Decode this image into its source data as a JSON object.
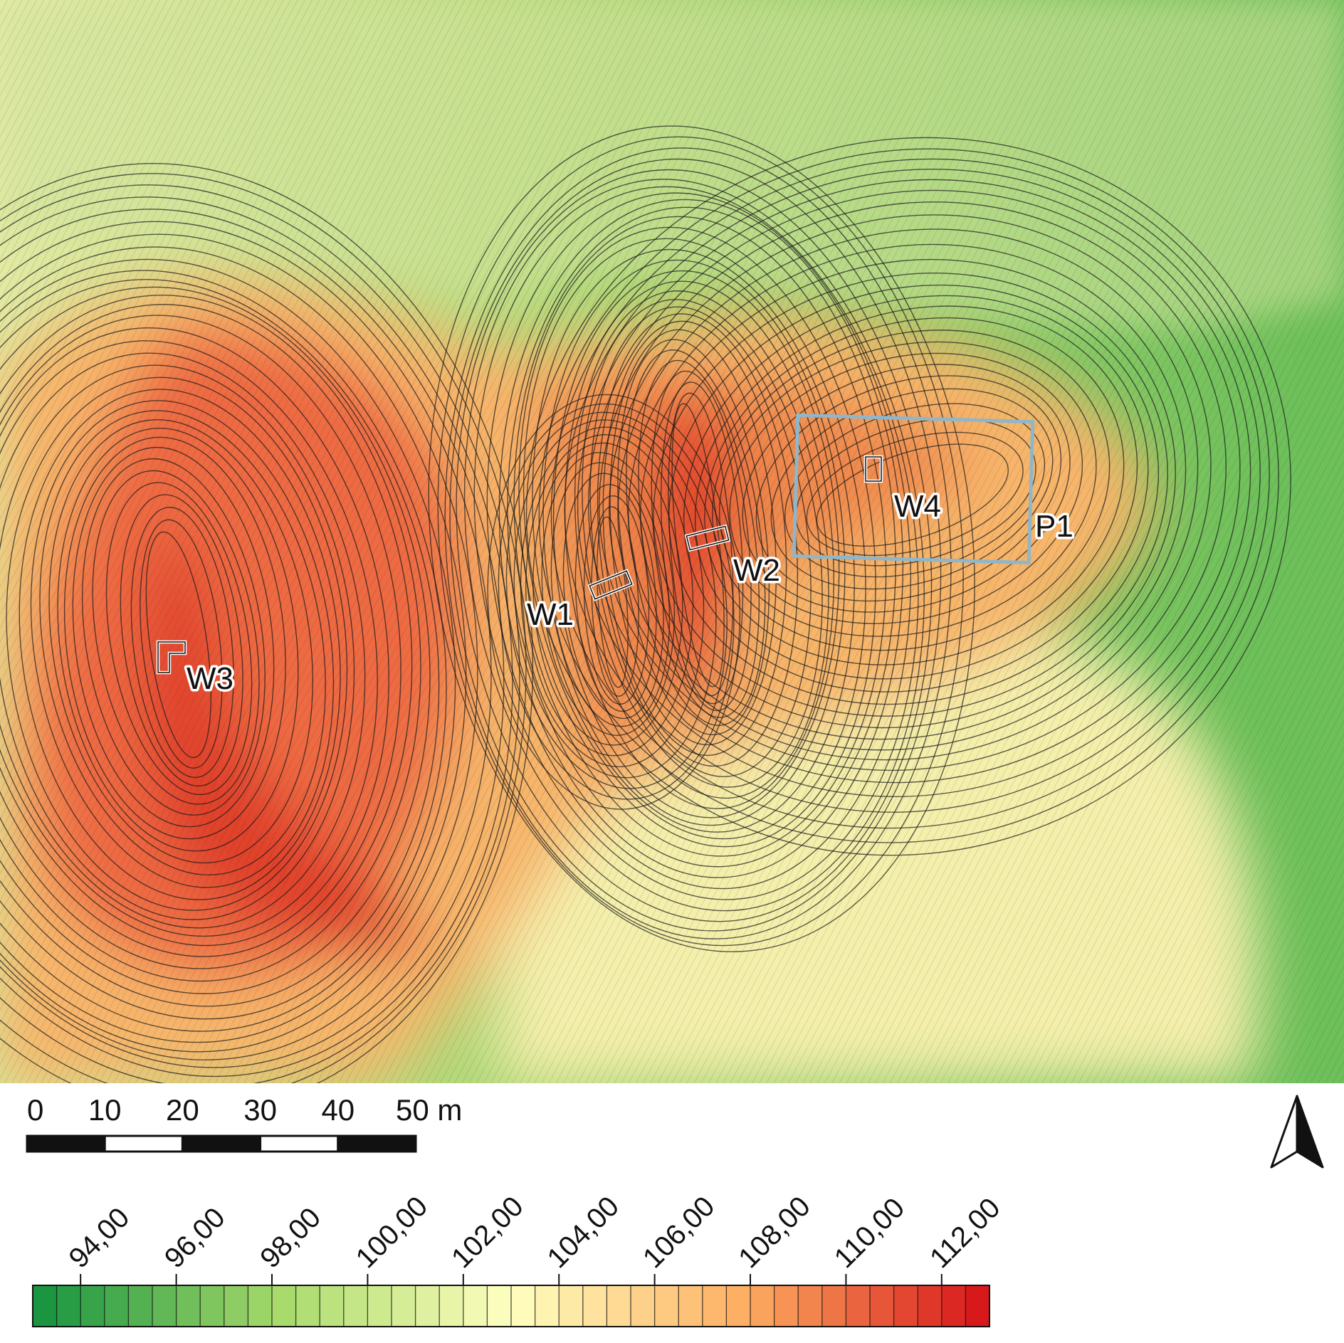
{
  "map": {
    "labels": {
      "w1": "W1",
      "w2": "W2",
      "w3": "W3",
      "w4": "W4",
      "p1": "P1"
    },
    "colors": {
      "contour_line": "#1a1a1a",
      "survey_box": "#8fb6c9",
      "trench_outline": "#ffffff"
    }
  },
  "scale_bar": {
    "labels": [
      "0",
      "10",
      "20",
      "30",
      "40",
      "50 m"
    ]
  },
  "north_arrow": {
    "icon": "north-arrow-icon"
  },
  "legend": {
    "labels": [
      "94,00",
      "96,00",
      "98,00",
      "100,00",
      "102,00",
      "104,00",
      "106,00",
      "108,00",
      "110,00",
      "112,00"
    ],
    "min": 93,
    "max": 113,
    "step": 0.5,
    "colors": [
      "#1a9641",
      "#a6d96a",
      "#ffffbf",
      "#fdae61",
      "#d7191c"
    ]
  }
}
